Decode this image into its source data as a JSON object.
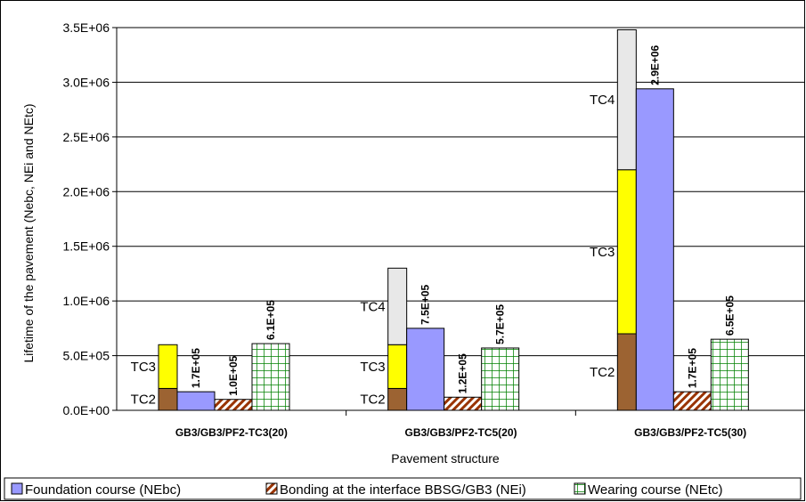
{
  "chart_data": {
    "type": "bar",
    "xlabel": "Pavement structure",
    "ylabel": "Lifetime of the pavement (Nebc, NEi and NEtc)",
    "ylim": [
      0,
      3500000
    ],
    "yticks": [
      "0.0E+00",
      "5.0E+05",
      "1.0E+06",
      "1.5E+06",
      "2.0E+06",
      "2.5E+06",
      "3.0E+06",
      "3.5E+06"
    ],
    "grid": true,
    "legend_position": "bottom",
    "categories": [
      "GB3/GB3/PF2-TC3(20)",
      "GB3/GB3/PF2-TC5(20)",
      "GB3/GB3/PF2-TC5(30)"
    ],
    "traffic_classes": [
      {
        "category": "GB3/GB3/PF2-TC3(20)",
        "segments": [
          {
            "label": "TC2",
            "from": 0,
            "to": 200000,
            "color": "#9c6332"
          },
          {
            "label": "TC3",
            "from": 200000,
            "to": 600000,
            "color": "#ffff00"
          }
        ]
      },
      {
        "category": "GB3/GB3/PF2-TC5(20)",
        "segments": [
          {
            "label": "TC2",
            "from": 0,
            "to": 200000,
            "color": "#9c6332"
          },
          {
            "label": "TC3",
            "from": 200000,
            "to": 600000,
            "color": "#ffff00"
          },
          {
            "label": "TC4",
            "from": 600000,
            "to": 1300000,
            "color": "#e8e8e8"
          }
        ]
      },
      {
        "category": "GB3/GB3/PF2-TC5(30)",
        "segments": [
          {
            "label": "TC2",
            "from": 0,
            "to": 700000,
            "color": "#9c6332"
          },
          {
            "label": "TC3",
            "from": 700000,
            "to": 2200000,
            "color": "#ffff00"
          },
          {
            "label": "TC4",
            "from": 2200000,
            "to": 3480000,
            "color": "#e8e8e8"
          }
        ]
      }
    ],
    "series": [
      {
        "name": "Foundation course (NEbc)",
        "values": [
          170000,
          750000,
          2940000
        ],
        "labels": [
          "1.7E+05",
          "7.5E+05",
          "2.9E+06"
        ],
        "color": "#9999ff",
        "pattern": "solid"
      },
      {
        "name": "Bonding at the interface BBSG/GB3 (NEi)",
        "values": [
          100000,
          120000,
          170000
        ],
        "labels": [
          "1.0E+05",
          "1.2E+05",
          "1.7E+05"
        ],
        "color": "#993300",
        "pattern": "diagonal"
      },
      {
        "name": "Wearing course (NEtc)",
        "values": [
          610000,
          570000,
          650000
        ],
        "labels": [
          "6.1E+05",
          "5.7E+05",
          "6.5E+05"
        ],
        "color": "#008000",
        "pattern": "grid"
      }
    ]
  }
}
